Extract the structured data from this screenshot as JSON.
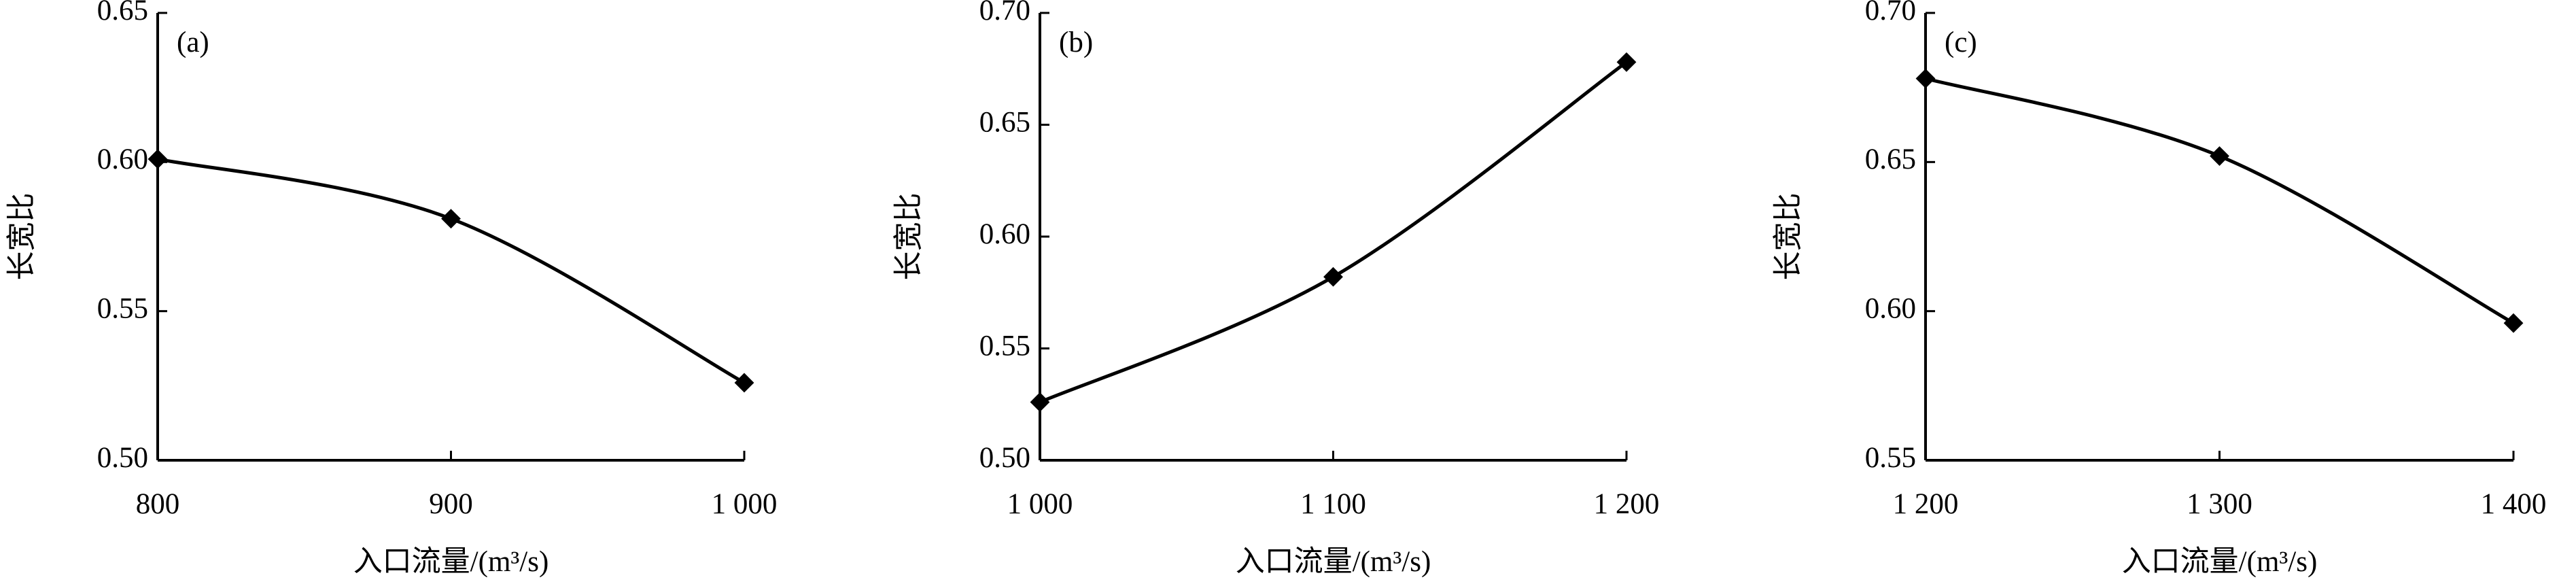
{
  "chart_data": [
    {
      "type": "line",
      "annotation": "(a)",
      "xlabel": "入口流量/(m³/s)",
      "ylabel": "长宽比",
      "x": [
        800,
        900,
        1000
      ],
      "series": [
        {
          "name": null,
          "color": "#000000",
          "values": [
            0.601,
            0.581,
            0.526
          ]
        }
      ],
      "xlim": [
        800,
        1000
      ],
      "xticks": [
        800,
        900,
        {
          "value": 1000,
          "label": "1 000"
        }
      ],
      "ylim": [
        0.5,
        0.65
      ],
      "yticks": [
        {
          "value": 0.5,
          "label": "0.50"
        },
        0.55,
        {
          "value": 0.6,
          "label": "0.60"
        },
        0.65
      ]
    },
    {
      "type": "line",
      "annotation": "(b)",
      "xlabel": "入口流量/(m³/s)",
      "ylabel": "长宽比",
      "x": [
        1000,
        1100,
        1200
      ],
      "series": [
        {
          "name": null,
          "color": "#000000",
          "values": [
            0.526,
            0.582,
            0.678
          ]
        }
      ],
      "xlim": [
        1000,
        1200
      ],
      "xticks": [
        {
          "value": 1000,
          "label": "1 000"
        },
        {
          "value": 1100,
          "label": "1 100"
        },
        {
          "value": 1200,
          "label": "1 200"
        }
      ],
      "ylim": [
        0.5,
        0.7
      ],
      "yticks": [
        {
          "value": 0.5,
          "label": "0.50"
        },
        0.55,
        {
          "value": 0.6,
          "label": "0.60"
        },
        0.65,
        {
          "value": 0.7,
          "label": "0.70"
        }
      ]
    },
    {
      "type": "line",
      "annotation": "(c)",
      "xlabel": "入口流量/(m³/s)",
      "ylabel": "长宽比",
      "x": [
        1200,
        1300,
        1400
      ],
      "series": [
        {
          "name": null,
          "color": "#000000",
          "values": [
            0.678,
            0.652,
            0.596
          ]
        }
      ],
      "xlim": [
        1200,
        1400
      ],
      "xticks": [
        {
          "value": 1200,
          "label": "1 200"
        },
        {
          "value": 1300,
          "label": "1 300"
        },
        {
          "value": 1400,
          "label": "1 400"
        }
      ],
      "ylim": [
        0.55,
        0.7
      ],
      "yticks": [
        0.55,
        {
          "value": 0.6,
          "label": "0.60"
        },
        0.65,
        {
          "value": 0.7,
          "label": "0.70"
        }
      ]
    }
  ]
}
